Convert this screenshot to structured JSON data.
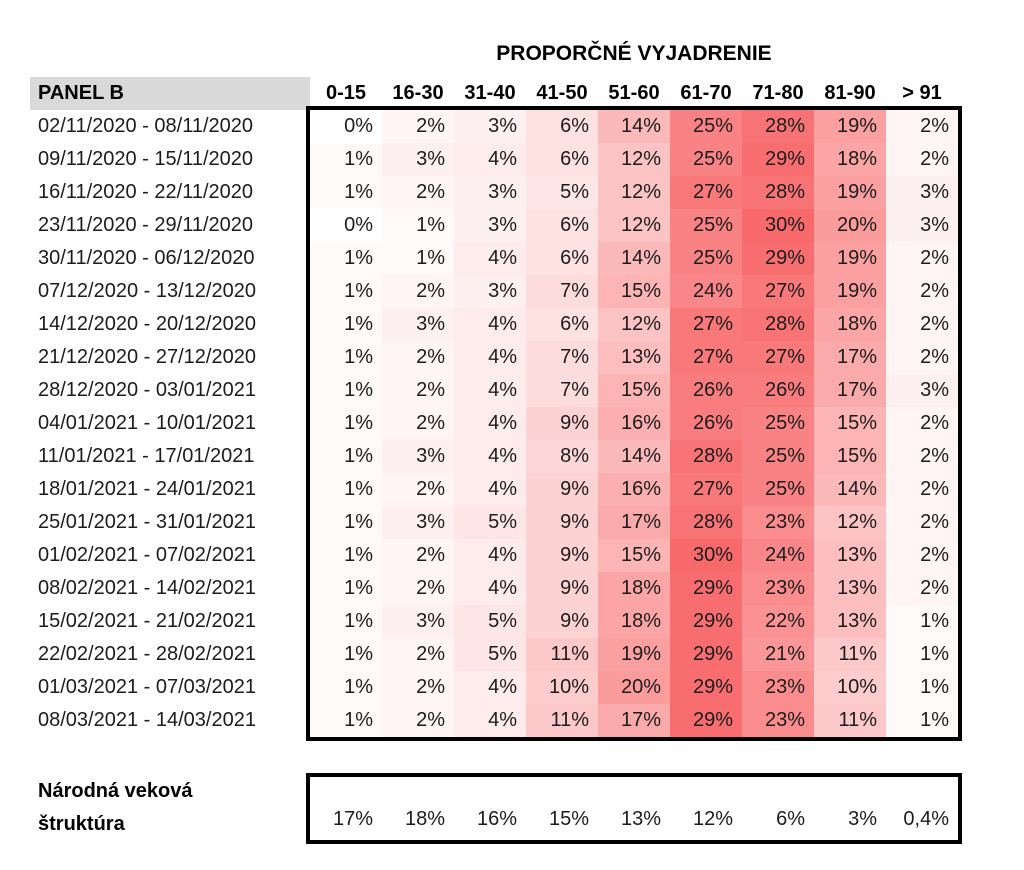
{
  "title": "PROPORČNÉ VYJADRENIE",
  "panel_label": "PANEL B",
  "footer_label_lines": [
    "Národná veková",
    "štruktúra"
  ],
  "chart_data": {
    "type": "heatmap",
    "title": "PROPORČNÉ VYJADRENIE",
    "row_header": "PANEL B",
    "unit": "percent",
    "columns": [
      "0-15",
      "16-30",
      "31-40",
      "41-50",
      "51-60",
      "61-70",
      "71-80",
      "81-90",
      "> 91"
    ],
    "rows": [
      {
        "label": "02/11/2020 - 08/11/2020",
        "values": [
          0,
          2,
          3,
          6,
          14,
          25,
          28,
          19,
          2
        ]
      },
      {
        "label": "09/11/2020 - 15/11/2020",
        "values": [
          1,
          3,
          4,
          6,
          12,
          25,
          29,
          18,
          2
        ]
      },
      {
        "label": "16/11/2020 - 22/11/2020",
        "values": [
          1,
          2,
          3,
          5,
          12,
          27,
          28,
          19,
          3
        ]
      },
      {
        "label": "23/11/2020 - 29/11/2020",
        "values": [
          0,
          1,
          3,
          6,
          12,
          25,
          30,
          20,
          3
        ]
      },
      {
        "label": "30/11/2020 - 06/12/2020",
        "values": [
          1,
          1,
          4,
          6,
          14,
          25,
          29,
          19,
          2
        ]
      },
      {
        "label": "07/12/2020 - 13/12/2020",
        "values": [
          1,
          2,
          3,
          7,
          15,
          24,
          27,
          19,
          2
        ]
      },
      {
        "label": "14/12/2020 - 20/12/2020",
        "values": [
          1,
          3,
          4,
          6,
          12,
          27,
          28,
          18,
          2
        ]
      },
      {
        "label": "21/12/2020 - 27/12/2020",
        "values": [
          1,
          2,
          4,
          7,
          13,
          27,
          27,
          17,
          2
        ]
      },
      {
        "label": "28/12/2020 - 03/01/2021",
        "values": [
          1,
          2,
          4,
          7,
          15,
          26,
          26,
          17,
          3
        ]
      },
      {
        "label": "04/01/2021 - 10/01/2021",
        "values": [
          1,
          2,
          4,
          9,
          16,
          26,
          25,
          15,
          2
        ]
      },
      {
        "label": "11/01/2021 - 17/01/2021",
        "values": [
          1,
          3,
          4,
          8,
          14,
          28,
          25,
          15,
          2
        ]
      },
      {
        "label": "18/01/2021 - 24/01/2021",
        "values": [
          1,
          2,
          4,
          9,
          16,
          27,
          25,
          14,
          2
        ]
      },
      {
        "label": "25/01/2021 - 31/01/2021",
        "values": [
          1,
          3,
          5,
          9,
          17,
          28,
          23,
          12,
          2
        ]
      },
      {
        "label": "01/02/2021 - 07/02/2021",
        "values": [
          1,
          2,
          4,
          9,
          15,
          30,
          24,
          13,
          2
        ]
      },
      {
        "label": "08/02/2021 - 14/02/2021",
        "values": [
          1,
          2,
          4,
          9,
          18,
          29,
          23,
          13,
          2
        ]
      },
      {
        "label": "15/02/2021 - 21/02/2021",
        "values": [
          1,
          3,
          5,
          9,
          18,
          29,
          22,
          13,
          1
        ]
      },
      {
        "label": "22/02/2021 - 28/02/2021",
        "values": [
          1,
          2,
          5,
          11,
          19,
          29,
          21,
          11,
          1
        ]
      },
      {
        "label": "01/03/2021 - 07/03/2021",
        "values": [
          1,
          2,
          4,
          10,
          20,
          29,
          23,
          10,
          1
        ]
      },
      {
        "label": "08/03/2021 - 14/03/2021",
        "values": [
          1,
          2,
          4,
          11,
          17,
          29,
          23,
          11,
          1
        ]
      }
    ],
    "value_suffix": "%",
    "footer": {
      "label": "Národná veková štruktúra",
      "values_display": [
        "17%",
        "18%",
        "16%",
        "15%",
        "13%",
        "12%",
        "6%",
        "3%",
        "0,4%"
      ]
    },
    "color_scale": {
      "min_value": 0,
      "max_value": 30,
      "min_color": "#FFFFFF",
      "max_color": "#F8696B"
    },
    "styles": {
      "row_header_bg": "#D9D9D9",
      "block_border_color": "#000000",
      "text_color": "#1C1C1C"
    },
    "layout": {
      "legend": "none",
      "grid": "off",
      "title_position": "top-center-over-data-columns"
    }
  }
}
